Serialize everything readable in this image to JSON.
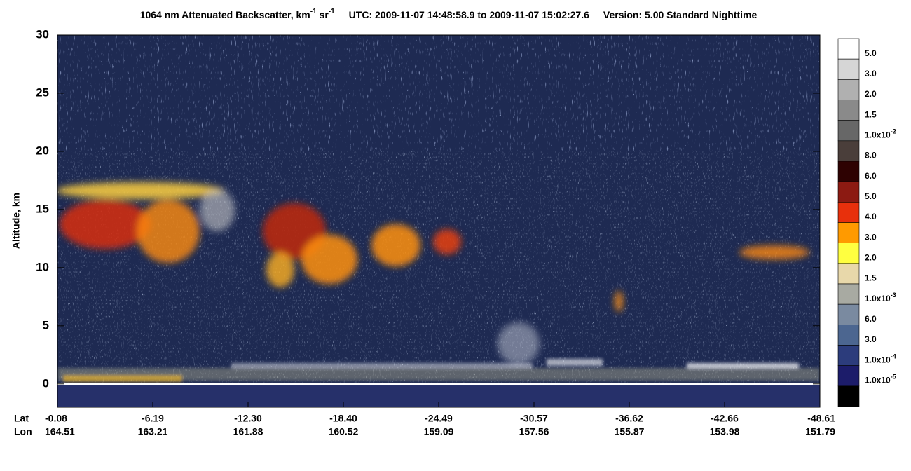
{
  "chart_data": {
    "type": "curtain",
    "title_segments": [
      {
        "text": "1064 nm Attenuated Backscatter, km"
      },
      {
        "sup": "-1"
      },
      {
        "text": " sr"
      },
      {
        "sup": "-1"
      }
    ],
    "time_range": "UTC:  2009-11-07 14:48:58.9  to  2009-11-07 15:02:27.6",
    "version": "Version: 5.00  Standard  Nighttime",
    "y_label": "Altitude, km",
    "ylim": [
      -2,
      30
    ],
    "yticks": [
      0,
      5,
      10,
      15,
      20,
      25,
      30
    ],
    "lat_title": "Lat",
    "lon_title": "Lon",
    "lat": [
      -0.08,
      -6.19,
      {
        "value": -12.3,
        "label": "-12.30"
      },
      {
        "value": -18.4,
        "label": "-18.40"
      },
      -24.49,
      -30.57,
      -36.62,
      -42.66,
      -48.61
    ],
    "lon": [
      164.51,
      163.21,
      161.88,
      160.52,
      159.09,
      157.56,
      155.87,
      153.98,
      151.79
    ],
    "colorbar": [
      {
        "color": "#ffffff",
        "label": "5.0"
      },
      {
        "color": "#d6d6d6",
        "label": "3.0"
      },
      {
        "color": "#b0b0b0",
        "label": "2.0"
      },
      {
        "color": "#8a8a8a",
        "label": "1.5"
      },
      {
        "color": "#676767",
        "label": "1.0x10",
        "exp": "-2"
      },
      {
        "color": "#4a3e3a",
        "label": "8.0"
      },
      {
        "color": "#2e0202",
        "label": "6.0"
      },
      {
        "color": "#8c1a12",
        "label": "5.0"
      },
      {
        "color": "#e8300c",
        "label": "4.0"
      },
      {
        "color": "#ff9a00",
        "label": "3.0"
      },
      {
        "color": "#ffff40",
        "label": "2.0"
      },
      {
        "color": "#e8d8aa",
        "label": "1.5"
      },
      {
        "color": "#a8aaa2",
        "label": "1.0x10",
        "exp": "-3"
      },
      {
        "color": "#7a8aa0",
        "label": "6.0"
      },
      {
        "color": "#4c6690",
        "label": "3.0"
      },
      {
        "color": "#2c3c7c",
        "label": "1.0x10",
        "exp": "-4"
      },
      {
        "color": "#1c1c6a",
        "label": "1.0x10",
        "exp": "-5"
      },
      {
        "color": "#000000"
      }
    ]
  }
}
